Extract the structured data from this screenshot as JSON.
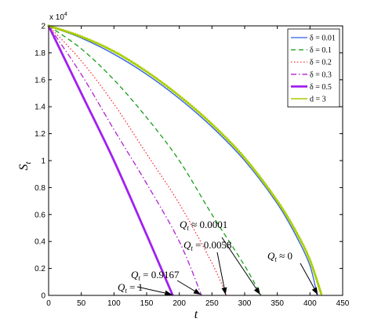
{
  "chart_data": {
    "type": "line",
    "title": "",
    "xlabel": "t",
    "ylabel": "S",
    "ylabel_sub": "t",
    "xlim": [
      0,
      450
    ],
    "ylim": [
      0,
      20000
    ],
    "y_multiplier_label": "x 10",
    "y_multiplier_exp": "4",
    "x_ticks": [
      0,
      50,
      100,
      150,
      200,
      250,
      300,
      350,
      400,
      450
    ],
    "x_tick_labels": [
      "0",
      "50",
      "100",
      "150",
      "200",
      "250",
      "300",
      "350",
      "400",
      "450"
    ],
    "y_ticks": [
      0,
      2000,
      4000,
      6000,
      8000,
      10000,
      12000,
      14000,
      16000,
      18000,
      20000
    ],
    "y_tick_labels": [
      "0",
      "0.2",
      "0.4",
      "0.6",
      "0.8",
      "1",
      "1.2",
      "1.4",
      "1.6",
      "1.8",
      "2"
    ],
    "grid": false,
    "legend_position": "top-right",
    "series": [
      {
        "name": "δ = 0.01",
        "color": "#2c5fe8",
        "dash": "",
        "width": 1.3,
        "x": [
          0,
          50,
          100,
          150,
          200,
          250,
          300,
          350,
          380,
          400,
          411
        ],
        "y": [
          20000,
          19100,
          17900,
          16400,
          14600,
          12500,
          10000,
          6800,
          4300,
          2200,
          0
        ]
      },
      {
        "name": "δ = 0.1",
        "color": "#1a9e1a",
        "dash": "6,4",
        "width": 1.3,
        "x": [
          0,
          50,
          100,
          150,
          200,
          250,
          300,
          325
        ],
        "y": [
          20000,
          18300,
          16000,
          13200,
          10000,
          6000,
          2200,
          0
        ]
      },
      {
        "name": "δ = 0.2",
        "color": "#ff2020",
        "dash": "1.5,2.5",
        "width": 1.2,
        "x": [
          0,
          50,
          100,
          150,
          200,
          250,
          272
        ],
        "y": [
          20000,
          17400,
          14200,
          10500,
          6800,
          2400,
          0
        ]
      },
      {
        "name": "δ = 0.3",
        "color": "#b020d0",
        "dash": "7,3,1.5,3",
        "width": 1.3,
        "x": [
          0,
          50,
          100,
          150,
          200,
          234
        ],
        "y": [
          20000,
          16400,
          12300,
          8300,
          4000,
          0
        ]
      },
      {
        "name": "δ = 0.5",
        "color": "#a020f0",
        "dash": "",
        "width": 2.8,
        "x": [
          0,
          50,
          100,
          150,
          190
        ],
        "y": [
          20000,
          15000,
          10000,
          4500,
          0
        ]
      },
      {
        "name": "d = 3",
        "color": "#a8cc00",
        "dash": "",
        "width": 1.5,
        "markers": true,
        "x": [
          0,
          50,
          100,
          150,
          200,
          250,
          300,
          350,
          380,
          400,
          418
        ],
        "y": [
          20000,
          19200,
          18100,
          16600,
          14800,
          12700,
          10200,
          7000,
          4600,
          2600,
          0
        ]
      }
    ],
    "annotations": [
      {
        "label": "Q",
        "sub": "t",
        "rest": " ≈ 0.0001",
        "target_x": 325,
        "target_y": 0
      },
      {
        "label": "Q",
        "sub": "t",
        "rest": " = 0.0058",
        "target_x": 272,
        "target_y": 0
      },
      {
        "label": "Q",
        "sub": "t",
        "rest": " = 0.9167",
        "target_x": 234,
        "target_y": 0
      },
      {
        "label": "Q",
        "sub": "t",
        "rest": " = 1",
        "target_x": 190,
        "target_y": 0
      },
      {
        "label": "Q",
        "sub": "t",
        "rest": " ≈ 0",
        "target_x": 413,
        "target_y": 0
      }
    ]
  }
}
